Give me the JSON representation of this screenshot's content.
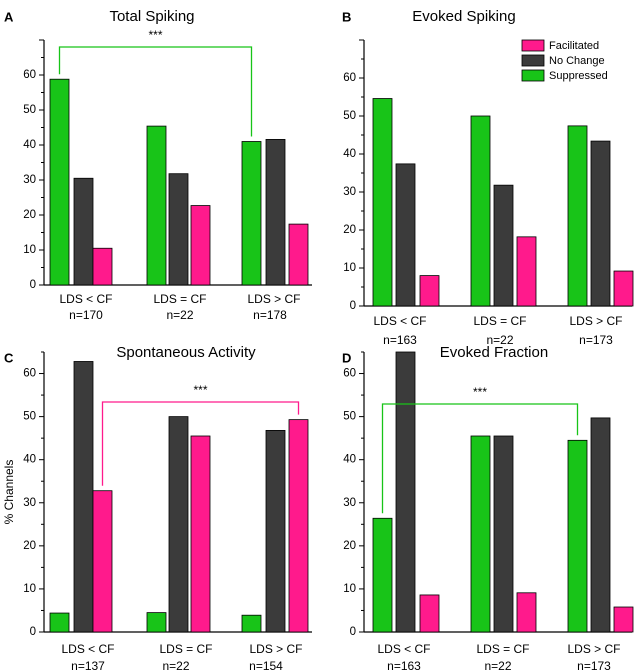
{
  "chart_data": [
    {
      "type": "bar",
      "panel_letter": "A",
      "title": "Total Spiking",
      "categories": [
        "LDS < CF",
        "LDS = CF",
        "LDS > CF"
      ],
      "n_labels": [
        "n=170",
        "n=22",
        "n=178"
      ],
      "series": [
        {
          "name": "Suppressed",
          "color": "#18c418",
          "values": [
            58.8,
            45.4,
            41.0
          ]
        },
        {
          "name": "No Change",
          "color": "#3b3b3b",
          "values": [
            30.5,
            31.8,
            41.6
          ]
        },
        {
          "name": "Facilitated",
          "color": "#ff1a8c",
          "values": [
            10.5,
            22.7,
            17.4
          ]
        }
      ],
      "ylim": [
        0,
        70
      ],
      "yticks": [
        0,
        10,
        20,
        30,
        40,
        50,
        60
      ],
      "ylabel": "",
      "significance": {
        "label": "***",
        "from_category": 0,
        "to_category": 2,
        "series": "Suppressed",
        "color": "#18c418"
      }
    },
    {
      "type": "bar",
      "panel_letter": "B",
      "title": "Evoked Spiking",
      "categories": [
        "LDS < CF",
        "LDS = CF",
        "LDS > CF"
      ],
      "n_labels": [
        "n=163",
        "n=22",
        "n=173"
      ],
      "series": [
        {
          "name": "Suppressed",
          "color": "#18c418",
          "values": [
            54.6,
            50.0,
            47.4
          ]
        },
        {
          "name": "No Change",
          "color": "#3b3b3b",
          "values": [
            37.4,
            31.8,
            43.4
          ]
        },
        {
          "name": "Facilitated",
          "color": "#ff1a8c",
          "values": [
            8.0,
            18.2,
            9.2
          ]
        }
      ],
      "ylim": [
        0,
        70
      ],
      "yticks": [
        0,
        10,
        20,
        30,
        40,
        50,
        60
      ],
      "ylabel": "",
      "legend": {
        "position": "top-right",
        "entries": [
          "Facilitated",
          "No Change",
          "Suppressed"
        ]
      }
    },
    {
      "type": "bar",
      "panel_letter": "C",
      "title": "Spontaneous Activity",
      "categories": [
        "LDS < CF",
        "LDS = CF",
        "LDS > CF"
      ],
      "n_labels": [
        "n=137",
        "n=22",
        "n=154"
      ],
      "series": [
        {
          "name": "Suppressed",
          "color": "#18c418",
          "values": [
            4.4,
            4.5,
            3.9
          ]
        },
        {
          "name": "No Change",
          "color": "#3b3b3b",
          "values": [
            62.8,
            50.0,
            46.8
          ]
        },
        {
          "name": "Facilitated",
          "color": "#ff1a8c",
          "values": [
            32.8,
            45.5,
            49.3
          ]
        }
      ],
      "ylim": [
        0,
        65
      ],
      "yticks": [
        0,
        10,
        20,
        30,
        40,
        50,
        60
      ],
      "ylabel": "% Channels",
      "significance": {
        "label": "***",
        "from_category": 0,
        "to_category": 2,
        "series": "Facilitated",
        "color": "#ff1a8c"
      }
    },
    {
      "type": "bar",
      "panel_letter": "D",
      "title": "Evoked Fraction",
      "categories": [
        "LDS < CF",
        "LDS = CF",
        "LDS > CF"
      ],
      "n_labels": [
        "n=163",
        "n=22",
        "n=173"
      ],
      "series": [
        {
          "name": "Suppressed",
          "color": "#18c418",
          "values": [
            26.4,
            45.5,
            44.5
          ]
        },
        {
          "name": "No Change",
          "color": "#3b3b3b",
          "values": [
            65.0,
            45.5,
            49.7
          ]
        },
        {
          "name": "Facilitated",
          "color": "#ff1a8c",
          "values": [
            8.6,
            9.1,
            5.8
          ]
        }
      ],
      "ylim": [
        0,
        65
      ],
      "yticks": [
        0,
        10,
        20,
        30,
        40,
        50,
        60
      ],
      "ylabel": "",
      "significance": {
        "label": "***",
        "from_category": 0,
        "to_category": 2,
        "series": "Suppressed",
        "color": "#18c418"
      }
    }
  ]
}
